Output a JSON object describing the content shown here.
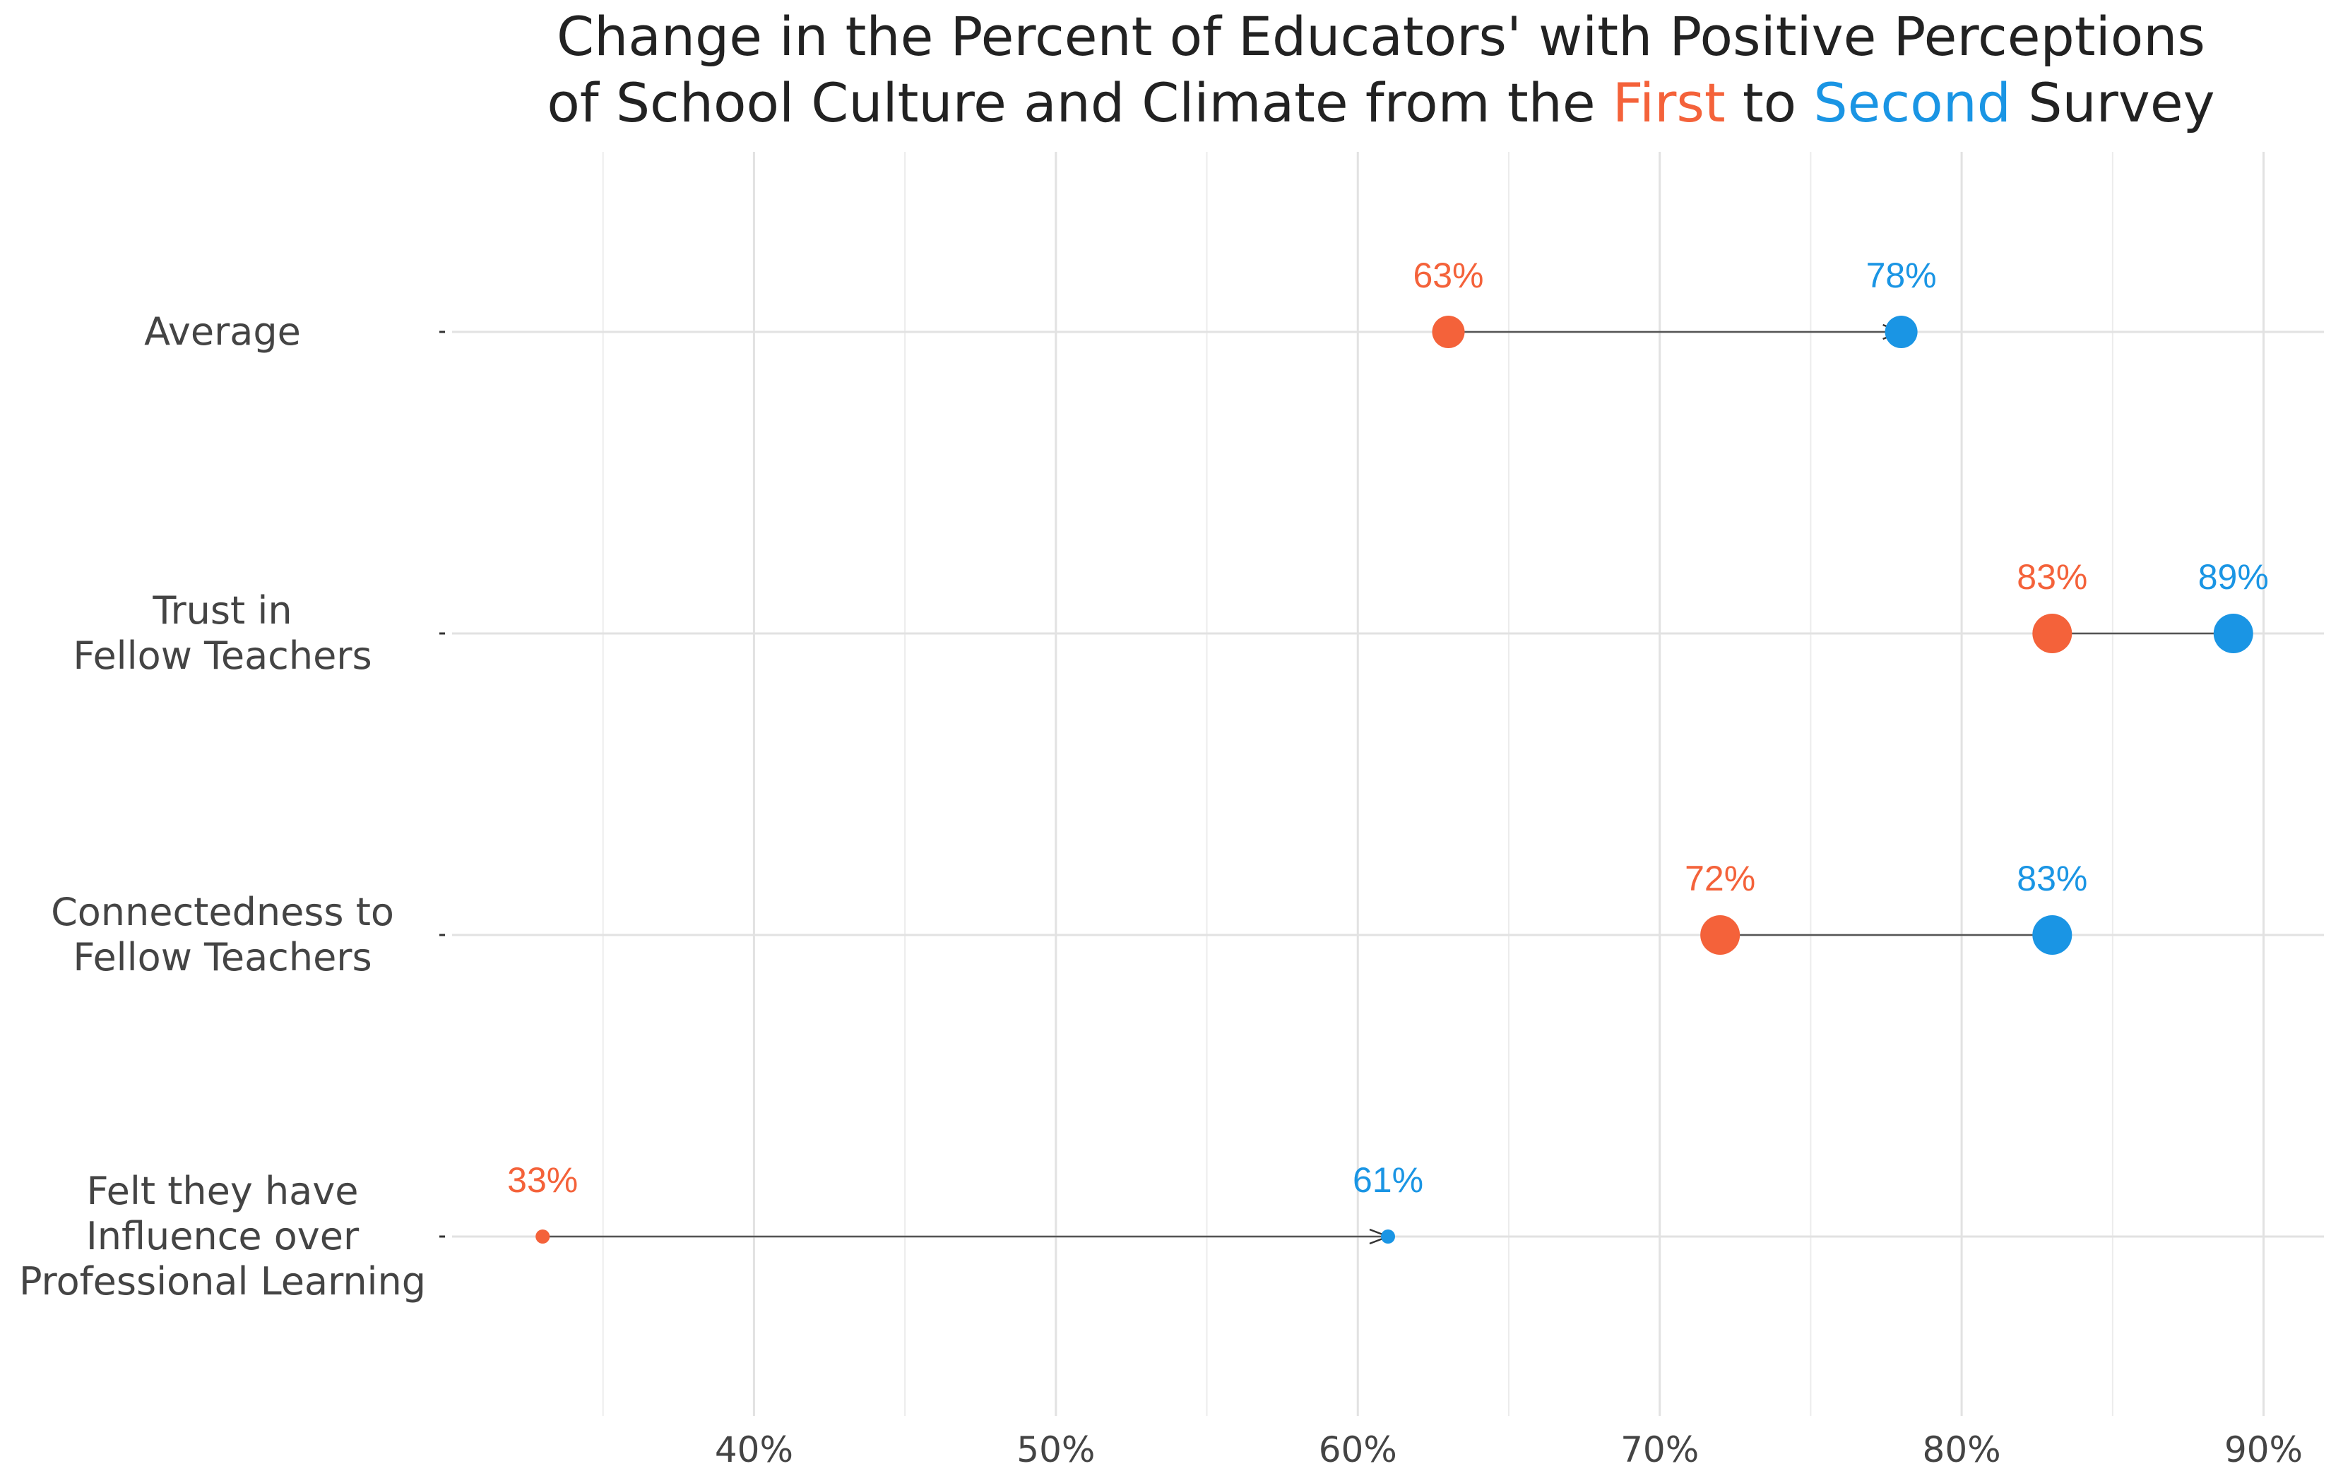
{
  "chart_data": {
    "type": "dumbbell",
    "title": {
      "line1": "Change in the Percent of Educators' with Positive Perceptions",
      "line2_prefix": "of School Culture and Climate from the ",
      "first_word": "First",
      "connector": " to ",
      "second_word": "Second",
      "line2_suffix": " Survey"
    },
    "xlim": [
      30,
      92
    ],
    "x_ticks": [
      {
        "value": 40,
        "label": "40%"
      },
      {
        "value": 50,
        "label": "50%"
      },
      {
        "value": 60,
        "label": "60%"
      },
      {
        "value": 70,
        "label": "70%"
      },
      {
        "value": 80,
        "label": "80%"
      },
      {
        "value": 90,
        "label": "90%"
      }
    ],
    "x_minor_gridlines": [
      35,
      45,
      55,
      65,
      75,
      85
    ],
    "grid": true,
    "series": [
      {
        "name": "First",
        "color": "#f4623a"
      },
      {
        "name": "Second",
        "color": "#1a95e4"
      }
    ],
    "categories": [
      {
        "label_lines": [
          "Average"
        ],
        "first": 63,
        "first_label": "63%",
        "second": 78,
        "second_label": "78%",
        "point_size": "medium"
      },
      {
        "label_lines": [
          "Trust in",
          "Fellow Teachers"
        ],
        "first": 83,
        "first_label": "83%",
        "second": 89,
        "second_label": "89%",
        "point_size": "large"
      },
      {
        "label_lines": [
          "Connectedness to",
          "Fellow Teachers"
        ],
        "first": 72,
        "first_label": "72%",
        "second": 83,
        "second_label": "83%",
        "point_size": "large"
      },
      {
        "label_lines": [
          "Felt they have",
          "Influence over",
          "Professional Learning"
        ],
        "first": 33,
        "first_label": "33%",
        "second": 61,
        "second_label": "61%",
        "point_size": "small"
      }
    ],
    "arrow_color": "#555555"
  }
}
